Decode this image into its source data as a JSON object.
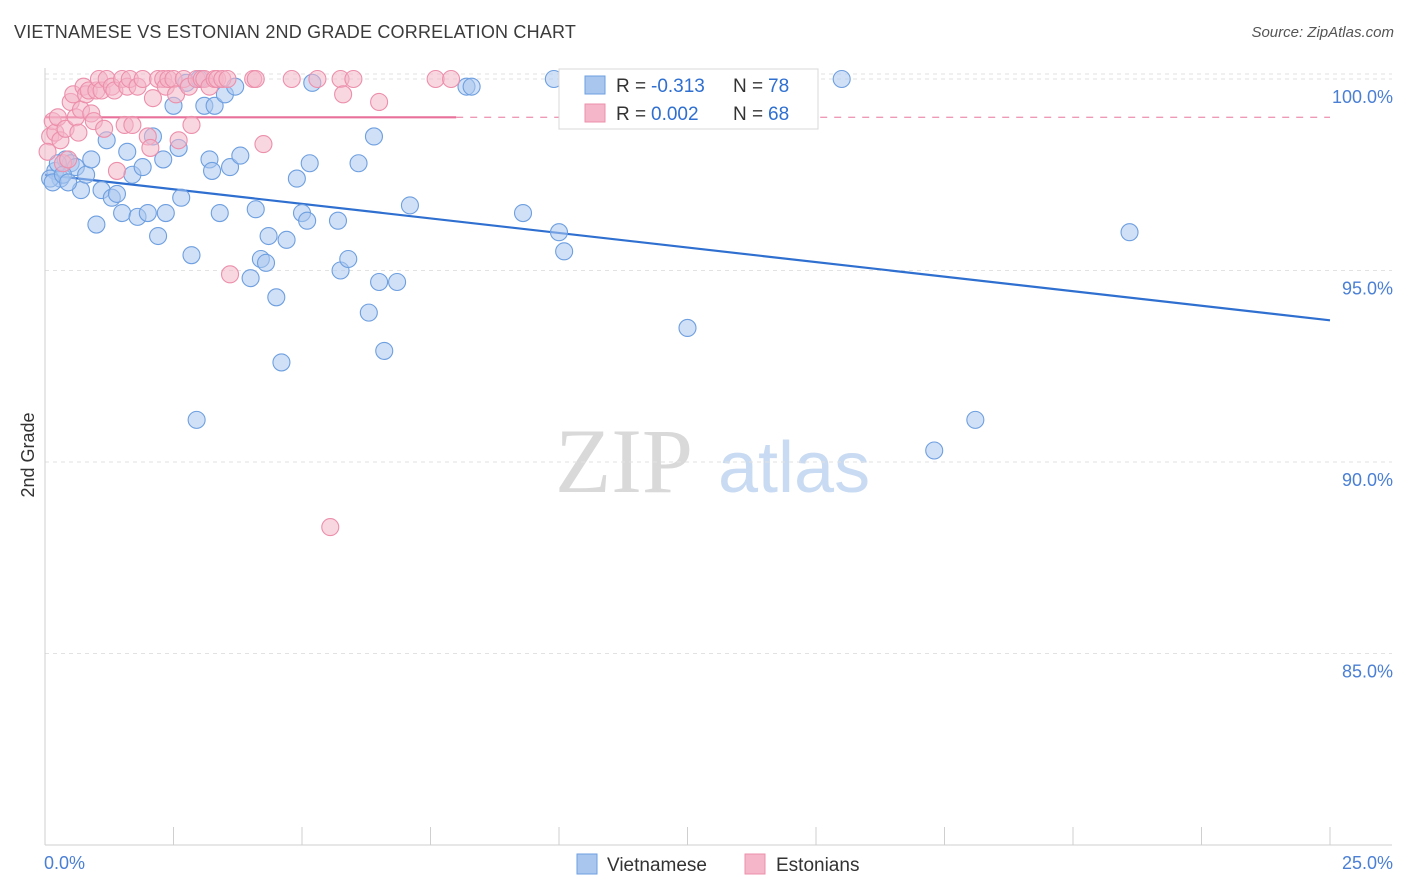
{
  "header": {
    "title": "VIETNAMESE VS ESTONIAN 2ND GRADE CORRELATION CHART",
    "source": "Source: ZipAtlas.com"
  },
  "watermark": {
    "zip": "ZIP",
    "atlas": "atlas"
  },
  "legend_box": {
    "rows": [
      {
        "r_label": "R = ",
        "r_value": "-0.313",
        "n_label": "N = ",
        "n_value": "78",
        "color": "#a9c7ee"
      },
      {
        "r_label": "R = ",
        "r_value": "0.002",
        "n_label": "N = ",
        "n_value": "68",
        "color": "#f4b6c8"
      }
    ]
  },
  "chart_data": {
    "type": "scatter",
    "title": "VIETNAMESE VS ESTONIAN 2ND GRADE CORRELATION CHART",
    "xlabel": "",
    "ylabel": "2nd Grade",
    "xlim": [
      0,
      25
    ],
    "ylim": [
      80,
      100.8
    ],
    "x_tick_labels": [
      {
        "value": 0,
        "label": "0.0%"
      },
      {
        "value": 25,
        "label": "25.0%"
      }
    ],
    "y_tick_labels": [
      {
        "value": 100,
        "label": "100.0%"
      },
      {
        "value": 95,
        "label": "95.0%"
      },
      {
        "value": 90,
        "label": "90.0%"
      },
      {
        "value": 85,
        "label": "85.0%"
      }
    ],
    "series": [
      {
        "name": "Vietnamese",
        "color": "#a9c7ee",
        "stroke": "#6e9fe0",
        "trend_color": "#2f6fd0",
        "trend": {
          "x": [
            0,
            25
          ],
          "y": [
            97.5,
            93.7
          ]
        },
        "points": [
          [
            0.2,
            97.6
          ],
          [
            0.3,
            97.4
          ],
          [
            0.4,
            97.9
          ],
          [
            0.5,
            97.8
          ],
          [
            0.6,
            97.7
          ],
          [
            0.7,
            97.1
          ],
          [
            0.8,
            97.5
          ],
          [
            0.9,
            97.9
          ],
          [
            1.0,
            96.2
          ],
          [
            1.1,
            97.1
          ],
          [
            1.2,
            98.4
          ],
          [
            1.3,
            96.9
          ],
          [
            1.4,
            97.0
          ],
          [
            1.5,
            96.5
          ],
          [
            1.6,
            98.1
          ],
          [
            1.7,
            97.5
          ],
          [
            1.8,
            96.4
          ],
          [
            1.9,
            97.7
          ],
          [
            2.0,
            96.5
          ],
          [
            2.1,
            98.5
          ],
          [
            2.2,
            95.9
          ],
          [
            2.3,
            97.9
          ],
          [
            2.35,
            96.5
          ],
          [
            2.5,
            99.3
          ],
          [
            2.6,
            98.2
          ],
          [
            2.65,
            96.9
          ],
          [
            2.75,
            99.9
          ],
          [
            2.85,
            95.4
          ],
          [
            2.95,
            91.1
          ],
          [
            3.0,
            100.0
          ],
          [
            3.1,
            99.3
          ],
          [
            3.2,
            97.9
          ],
          [
            3.25,
            97.6
          ],
          [
            3.3,
            99.3
          ],
          [
            3.4,
            96.5
          ],
          [
            3.5,
            99.6
          ],
          [
            3.6,
            97.7
          ],
          [
            3.7,
            99.8
          ],
          [
            3.8,
            98.0
          ],
          [
            4.0,
            94.8
          ],
          [
            4.1,
            96.6
          ],
          [
            4.2,
            95.3
          ],
          [
            4.3,
            95.2
          ],
          [
            4.35,
            95.9
          ],
          [
            4.5,
            94.3
          ],
          [
            4.6,
            92.6
          ],
          [
            4.7,
            95.8
          ],
          [
            4.9,
            97.4
          ],
          [
            5.0,
            96.5
          ],
          [
            5.1,
            96.3
          ],
          [
            5.15,
            97.8
          ],
          [
            5.2,
            99.9
          ],
          [
            5.7,
            96.3
          ],
          [
            5.75,
            95.0
          ],
          [
            5.9,
            95.3
          ],
          [
            6.1,
            97.8
          ],
          [
            6.3,
            93.9
          ],
          [
            6.4,
            98.5
          ],
          [
            6.5,
            94.7
          ],
          [
            6.6,
            92.9
          ],
          [
            6.85,
            94.7
          ],
          [
            7.1,
            96.7
          ],
          [
            8.2,
            99.8
          ],
          [
            8.3,
            99.8
          ],
          [
            9.3,
            96.5
          ],
          [
            9.9,
            100.0
          ],
          [
            10.0,
            96.0
          ],
          [
            10.1,
            95.5
          ],
          [
            12.5,
            93.5
          ],
          [
            15.5,
            100.0
          ],
          [
            17.3,
            90.3
          ],
          [
            18.1,
            91.1
          ],
          [
            21.1,
            96.0
          ],
          [
            0.1,
            97.4
          ],
          [
            0.15,
            97.3
          ],
          [
            0.25,
            97.8
          ],
          [
            0.35,
            97.5
          ],
          [
            0.45,
            97.3
          ]
        ]
      },
      {
        "name": "Estonians",
        "color": "#f4b6c8",
        "stroke": "#ec8fab",
        "trend_color": "#e8709a",
        "trend": {
          "x": [
            0,
            8
          ],
          "y": [
            99.0,
            99.0
          ]
        },
        "trend_dashed": {
          "x": [
            8,
            25
          ],
          "y": [
            99.0,
            99.0
          ]
        },
        "points": [
          [
            0.1,
            98.5
          ],
          [
            0.15,
            98.9
          ],
          [
            0.2,
            98.6
          ],
          [
            0.25,
            99.0
          ],
          [
            0.3,
            98.4
          ],
          [
            0.35,
            97.8
          ],
          [
            0.4,
            98.7
          ],
          [
            0.45,
            97.9
          ],
          [
            0.5,
            99.4
          ],
          [
            0.55,
            99.6
          ],
          [
            0.6,
            99.0
          ],
          [
            0.65,
            98.6
          ],
          [
            0.7,
            99.2
          ],
          [
            0.75,
            99.8
          ],
          [
            0.8,
            99.6
          ],
          [
            0.85,
            99.7
          ],
          [
            0.9,
            99.1
          ],
          [
            0.95,
            98.9
          ],
          [
            1.0,
            99.7
          ],
          [
            1.05,
            100.0
          ],
          [
            1.1,
            99.7
          ],
          [
            1.15,
            98.7
          ],
          [
            1.2,
            100.0
          ],
          [
            1.3,
            99.8
          ],
          [
            1.35,
            99.7
          ],
          [
            1.4,
            97.6
          ],
          [
            1.5,
            100.0
          ],
          [
            1.55,
            98.8
          ],
          [
            1.6,
            99.8
          ],
          [
            1.65,
            100.0
          ],
          [
            1.7,
            98.8
          ],
          [
            1.8,
            99.8
          ],
          [
            1.9,
            100.0
          ],
          [
            2.0,
            98.5
          ],
          [
            2.05,
            98.2
          ],
          [
            2.1,
            99.5
          ],
          [
            2.2,
            100.0
          ],
          [
            2.3,
            100.0
          ],
          [
            2.35,
            99.8
          ],
          [
            2.4,
            100.0
          ],
          [
            2.5,
            100.0
          ],
          [
            2.55,
            99.6
          ],
          [
            2.6,
            98.4
          ],
          [
            2.7,
            100.0
          ],
          [
            2.8,
            99.8
          ],
          [
            2.85,
            98.8
          ],
          [
            2.95,
            100.0
          ],
          [
            3.05,
            100.0
          ],
          [
            3.1,
            100.0
          ],
          [
            3.2,
            99.8
          ],
          [
            3.3,
            100.0
          ],
          [
            3.35,
            100.0
          ],
          [
            3.45,
            100.0
          ],
          [
            3.55,
            100.0
          ],
          [
            3.6,
            94.9
          ],
          [
            4.05,
            100.0
          ],
          [
            4.1,
            100.0
          ],
          [
            4.25,
            98.3
          ],
          [
            4.8,
            100.0
          ],
          [
            5.3,
            100.0
          ],
          [
            5.55,
            88.3
          ],
          [
            5.75,
            100.0
          ],
          [
            5.8,
            99.6
          ],
          [
            6.0,
            100.0
          ],
          [
            6.5,
            99.4
          ],
          [
            7.6,
            100.0
          ],
          [
            7.9,
            100.0
          ],
          [
            0.05,
            98.1
          ]
        ]
      }
    ]
  },
  "bottom_legend": {
    "items": [
      "Vietnamese",
      "Estonians"
    ]
  }
}
